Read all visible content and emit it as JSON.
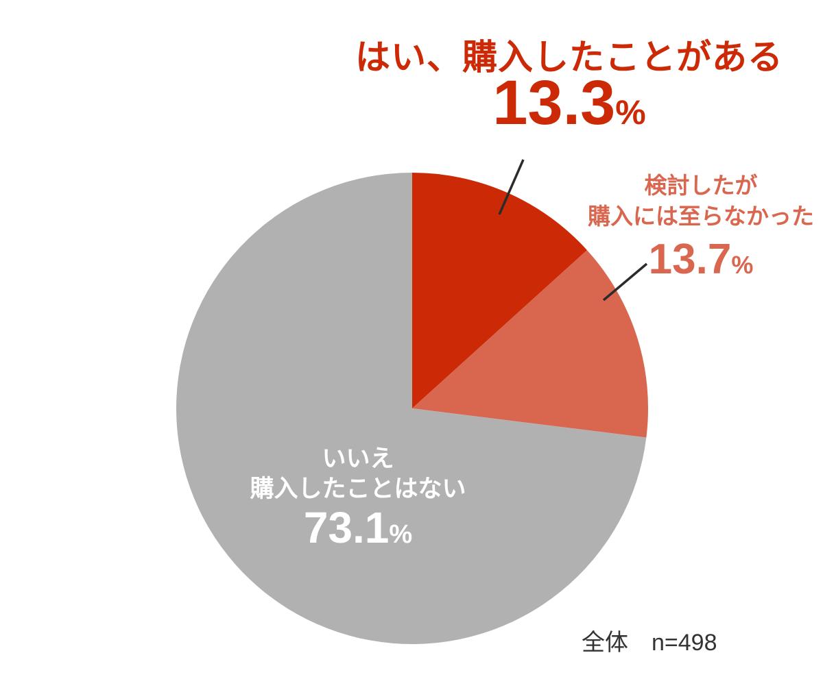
{
  "chart_data": {
    "type": "pie",
    "categories": [
      "はい、購入したことがある",
      "検討したが購入には至らなかった",
      "いいえ 購入したことはない"
    ],
    "values": [
      13.3,
      13.7,
      73.1
    ],
    "unit": "%",
    "colors": [
      "#cc2a06",
      "#d9664f",
      "#b1b1b2"
    ],
    "start_angle_deg": 0,
    "direction": "clockwise",
    "legend_position": "labels-around-pie",
    "footnote": "全体　n=498"
  },
  "labels": {
    "slice_yes": {
      "title": "はい、購入したことがある",
      "value": "13.3",
      "unit": "%"
    },
    "slice_considered": {
      "line1": "検討したが",
      "line2": "購入には至らなかった",
      "value": "13.7",
      "unit": "%"
    },
    "slice_no": {
      "line1": "いいえ",
      "line2": "購入したことはない",
      "value": "73.1",
      "unit": "%"
    },
    "footnote": "全体　n=498"
  },
  "colors": {
    "red": "#cc2a06",
    "salmon": "#d9664f",
    "gray": "#b1b1b2",
    "text_dark": "#333333",
    "leader_line": "#2b2b2b"
  }
}
